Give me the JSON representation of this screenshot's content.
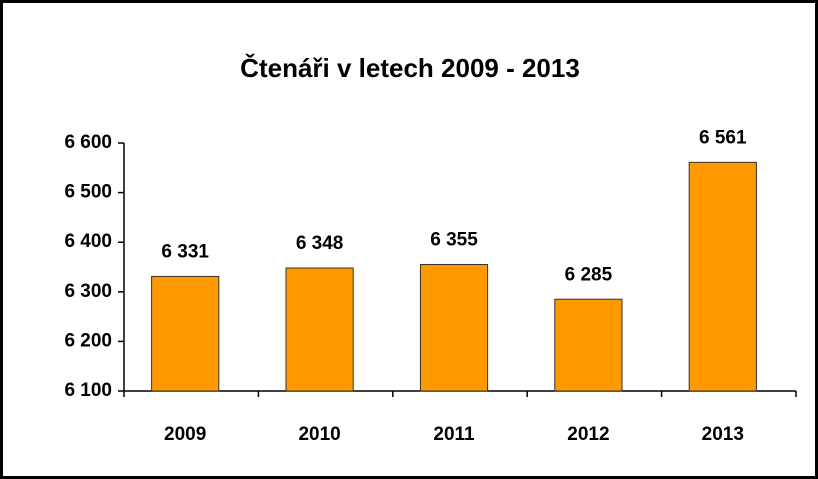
{
  "chart_data": {
    "type": "bar",
    "title": "Čtenáři v letech 2009 - 2013",
    "categories": [
      "2009",
      "2010",
      "2011",
      "2012",
      "2013"
    ],
    "values": [
      6331,
      6348,
      6355,
      6285,
      6561
    ],
    "value_labels": [
      "6 331",
      "6 348",
      "6 355",
      "6 285",
      "6 561"
    ],
    "color": "#ff9900",
    "ylim": [
      6100,
      6600
    ],
    "yticks": [
      {
        "value": 6100,
        "label": "6 100"
      },
      {
        "value": 6200,
        "label": "6 200"
      },
      {
        "value": 6300,
        "label": "6 300"
      },
      {
        "value": 6400,
        "label": "6 400"
      },
      {
        "value": 6500,
        "label": "6 500"
      },
      {
        "value": 6600,
        "label": "6 600"
      }
    ],
    "grid": false
  }
}
